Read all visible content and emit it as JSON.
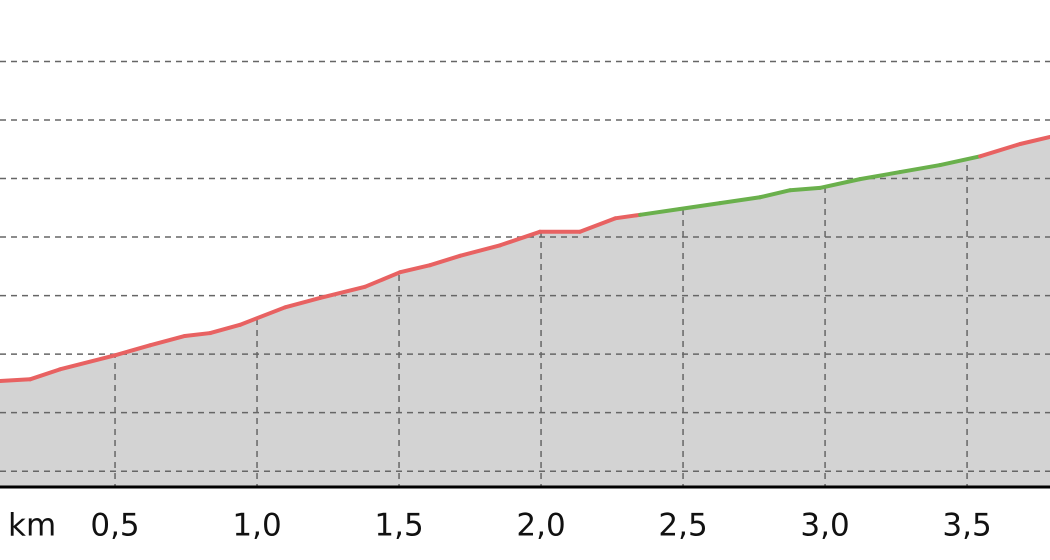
{
  "chart_data": {
    "type": "area-line",
    "x_axis_label": "km",
    "x": [
      0.095,
      0.201,
      0.306,
      0.5,
      0.623,
      0.746,
      0.835,
      0.94,
      1.099,
      1.222,
      1.38,
      1.504,
      1.609,
      1.715,
      1.856,
      1.996,
      2.137,
      2.261,
      2.349,
      2.489,
      2.63,
      2.771,
      2.877,
      2.982,
      3.123,
      3.264,
      3.405,
      3.546,
      3.687,
      3.792
    ],
    "values": [
      1.54,
      1.57,
      1.74,
      1.98,
      2.15,
      2.31,
      2.36,
      2.5,
      2.8,
      2.96,
      3.15,
      3.4,
      3.52,
      3.68,
      3.86,
      4.09,
      4.09,
      4.32,
      4.38,
      4.48,
      4.58,
      4.68,
      4.8,
      4.84,
      4.99,
      5.11,
      5.23,
      5.38,
      5.59,
      5.71
    ],
    "segment_colors": [
      "#e86262",
      "#e86262",
      "#e86262",
      "#e86262",
      "#e86262",
      "#e86262",
      "#e86262",
      "#e86262",
      "#e86262",
      "#e86262",
      "#e86262",
      "#e86262",
      "#e86262",
      "#e86262",
      "#e86262",
      "#e86262",
      "#e86262",
      "#e86262",
      "#6ab04c",
      "#6ab04c",
      "#6ab04c",
      "#6ab04c",
      "#6ab04c",
      "#6ab04c",
      "#6ab04c",
      "#6ab04c",
      "#6ab04c",
      "#e86262",
      "#e86262"
    ],
    "area_color": "#d3d3d3",
    "xlim": [
      0.095,
      3.792
    ],
    "ylim": [
      -0.27,
      8.05
    ],
    "xticks": [
      {
        "value": 0.5,
        "label": "0,5"
      },
      {
        "value": 1.0,
        "label": "1,0"
      },
      {
        "value": 1.5,
        "label": "1,5"
      },
      {
        "value": 2.0,
        "label": "2,0"
      },
      {
        "value": 2.5,
        "label": "2,5"
      },
      {
        "value": 3.0,
        "label": "3,0"
      },
      {
        "value": 3.5,
        "label": "3,5"
      }
    ],
    "yticks": [
      0,
      1,
      2,
      3,
      4,
      5,
      6,
      7
    ],
    "grid": true
  }
}
